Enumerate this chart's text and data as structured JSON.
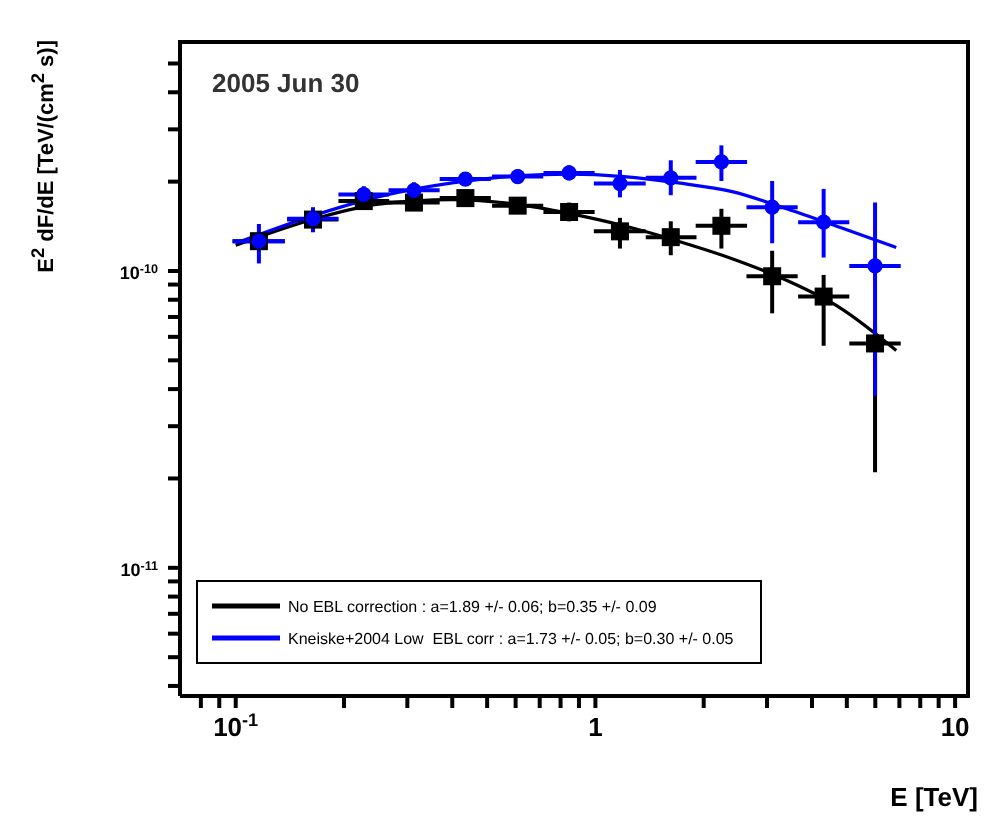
{
  "chart_data": {
    "type": "scatter",
    "annotations": [
      "2005 Jun 30"
    ],
    "xlabel": "E [TeV]",
    "ylabel": "E$^{2}$ dF/dE [TeV/(cm$^{2}$ s)]",
    "log": "xy",
    "legend": "bottom",
    "grid": false,
    "xlim": [
      0.07,
      11
    ],
    "ylim": [
      3.7e-12,
      6e-10
    ],
    "xticks": [
      {
        "value": 0.08,
        "label": null
      },
      {
        "value": 0.09,
        "label": null
      },
      {
        "value": 0.1,
        "label": "10$^{-1}$"
      },
      {
        "value": 0.2,
        "label": null
      },
      {
        "value": 0.3,
        "label": null
      },
      {
        "value": 0.4,
        "label": null
      },
      {
        "value": 0.5,
        "label": null
      },
      {
        "value": 0.6,
        "label": null
      },
      {
        "value": 0.7,
        "label": null
      },
      {
        "value": 0.8,
        "label": null
      },
      {
        "value": 0.9,
        "label": null
      },
      1,
      {
        "value": 2,
        "label": null
      },
      {
        "value": 3,
        "label": null
      },
      {
        "value": 4,
        "label": null
      },
      {
        "value": 5,
        "label": null
      },
      {
        "value": 6,
        "label": null
      },
      {
        "value": 7,
        "label": null
      },
      {
        "value": 8,
        "label": null
      },
      {
        "value": 9,
        "label": null
      },
      10
    ],
    "yticks": [
      {
        "value": 4e-12,
        "label": null
      },
      {
        "value": 5e-12,
        "label": null
      },
      {
        "value": 6e-12,
        "label": null
      },
      {
        "value": 7e-12,
        "label": null
      },
      {
        "value": 8e-12,
        "label": null
      },
      {
        "value": 9e-12,
        "label": null
      },
      {
        "value": 1e-11,
        "label": "10$^{-11}$"
      },
      {
        "value": 2e-11,
        "label": null
      },
      {
        "value": 3e-11,
        "label": null
      },
      {
        "value": 4e-11,
        "label": null
      },
      {
        "value": 5e-11,
        "label": null
      },
      {
        "value": 6e-11,
        "label": null
      },
      {
        "value": 7e-11,
        "label": null
      },
      {
        "value": 8e-11,
        "label": null
      },
      {
        "value": 9e-11,
        "label": null
      },
      {
        "value": 1e-10,
        "label": "10$^{-10}$"
      },
      {
        "value": 2e-10,
        "label": null
      },
      {
        "value": 3e-10,
        "label": null
      },
      {
        "value": 4e-10,
        "label": null
      },
      {
        "value": 5e-10,
        "label": null
      }
    ],
    "series": [
      {
        "type": "line",
        "name": "No EBL correction : a=1.89 +/- 0.06; b=0.35 +/- 0.09",
        "color": "#000000",
        "marker": "none",
        "x": [
          0.1,
          0.16,
          0.25,
          0.4,
          0.6,
          0.85,
          1.2,
          1.7,
          2.4,
          3.4,
          4.8,
          6.86
        ],
        "values": [
          1.22e-10,
          1.48e-10,
          1.68e-10,
          1.74e-10,
          1.68e-10,
          1.56e-10,
          1.42e-10,
          1.26e-10,
          1.1e-10,
          9.3e-11,
          7.5e-11,
          5.4e-11
        ]
      },
      {
        "type": "line",
        "name": "Kneiske+2004 Low  EBL corr : a=1.73 +/- 0.05; b=0.30 +/- 0.05",
        "color": "#0000ff",
        "marker": "none",
        "x": [
          0.1,
          0.16,
          0.25,
          0.4,
          0.6,
          0.85,
          1.2,
          1.7,
          2.4,
          3.4,
          4.8,
          6.86
        ],
        "values": [
          1.24e-10,
          1.52e-10,
          1.78e-10,
          1.98e-10,
          2.09e-10,
          2.12e-10,
          2.08e-10,
          1.98e-10,
          1.85e-10,
          1.62e-10,
          1.4e-10,
          1.2e-10
        ]
      },
      {
        "type": "scatter",
        "color": "#000000",
        "marker": "square",
        "x": [
          0.116,
          0.164,
          0.227,
          0.313,
          0.435,
          0.608,
          0.845,
          1.17,
          1.62,
          2.24,
          3.1,
          4.31,
          5.99
        ],
        "values": [
          1.26e-10,
          1.49e-10,
          1.72e-10,
          1.7e-10,
          1.76e-10,
          1.66e-10,
          1.58e-10,
          1.36e-10,
          1.3e-10,
          1.42e-10,
          9.6e-11,
          8.2e-11,
          5.7e-11
        ],
        "errors": [
          null,
          null,
          [
            1.62e-10,
            1.82e-10
          ],
          [
            1.6e-10,
            1.8e-10
          ],
          [
            1.65e-10,
            1.88e-10
          ],
          [
            1.56e-10,
            1.77e-10
          ],
          [
            1.47e-10,
            1.7e-10
          ],
          [
            1.19e-10,
            1.51e-10
          ],
          [
            1.13e-10,
            1.47e-10
          ],
          [
            1.19e-10,
            1.62e-10
          ],
          [
            7.2e-11,
            1.17e-10
          ],
          [
            5.6e-11,
            9.7e-11
          ],
          [
            2.1e-11,
            6.7e-11
          ]
        ],
        "xerrors": [
          [
            0.098,
            0.137
          ],
          [
            0.139,
            0.193
          ],
          [
            0.193,
            0.267
          ],
          [
            0.266,
            0.369
          ],
          [
            0.369,
            0.512
          ],
          [
            0.516,
            0.716
          ],
          [
            0.717,
            0.995
          ],
          [
            0.99,
            1.38
          ],
          [
            1.38,
            1.91
          ],
          [
            1.9,
            2.64
          ],
          [
            2.63,
            3.65
          ],
          [
            3.66,
            5.08
          ],
          [
            5.08,
            7.06
          ]
        ]
      },
      {
        "type": "scatter",
        "color": "#0000ff",
        "marker": "circle",
        "x": [
          0.116,
          0.164,
          0.227,
          0.313,
          0.435,
          0.608,
          0.845,
          1.17,
          1.62,
          2.24,
          3.1,
          4.31,
          5.99
        ],
        "values": [
          1.26e-10,
          1.5e-10,
          1.81e-10,
          1.87e-10,
          2.04e-10,
          2.08e-10,
          2.14e-10,
          1.97e-10,
          2.06e-10,
          2.33e-10,
          1.64e-10,
          1.46e-10,
          1.04e-10
        ],
        "errors": [
          [
            1.06e-10,
            1.44e-10
          ],
          [
            1.35e-10,
            1.64e-10
          ],
          [
            1.7e-10,
            1.93e-10
          ],
          [
            1.76e-10,
            1.99e-10
          ],
          [
            1.94e-10,
            2.15e-10
          ],
          [
            1.97e-10,
            2.2e-10
          ],
          [
            2.02e-10,
            2.27e-10
          ],
          [
            1.77e-10,
            2.19e-10
          ],
          [
            1.8e-10,
            2.36e-10
          ],
          [
            2.01e-10,
            2.65e-10
          ],
          [
            1.24e-10,
            2.01e-10
          ],
          [
            1.11e-10,
            1.89e-10
          ],
          [
            3.8e-11,
            1.7e-10
          ]
        ],
        "xerrors": [
          [
            0.098,
            0.137
          ],
          [
            0.139,
            0.193
          ],
          [
            0.193,
            0.267
          ],
          [
            0.266,
            0.369
          ],
          [
            0.369,
            0.512
          ],
          [
            0.516,
            0.716
          ],
          [
            0.717,
            0.995
          ],
          [
            0.99,
            1.38
          ],
          [
            1.38,
            1.91
          ],
          [
            1.9,
            2.64
          ],
          [
            2.63,
            3.65
          ],
          [
            3.66,
            5.08
          ],
          [
            5.08,
            7.06
          ]
        ]
      }
    ]
  }
}
